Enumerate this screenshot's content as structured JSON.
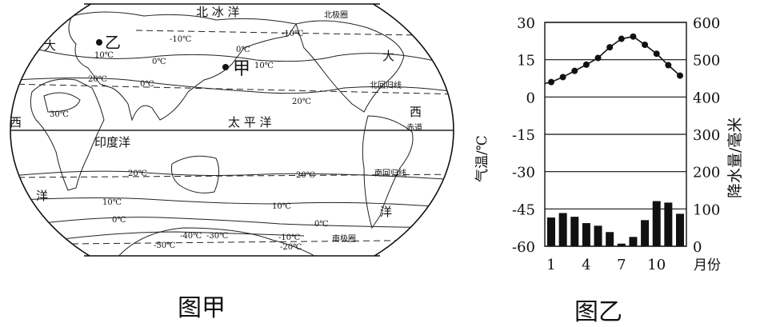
{
  "figure_a": {
    "caption": "图甲",
    "labels": {
      "arctic": "北 冰 洋",
      "pacific": "太 平 洋",
      "indian": "印度洋",
      "atlantic_w": "西",
      "atlantic_w2": "洋",
      "atlantic_da": "大",
      "atlantic_e_da": "大",
      "atlantic_e_xi": "西",
      "atlantic_e_yang": "洋",
      "point_jia": "甲",
      "point_yi": "乙",
      "tropic_cancer": "北回归线",
      "tropic_capricorn": "南回归线",
      "equator": "赤道",
      "antarctic_circle": "南极圈",
      "arctic_circle": "北极圈"
    },
    "isotherms": {
      "n_m10": "-10℃",
      "n_0": "0℃",
      "n_10": "10℃",
      "n_10b": "10℃",
      "n_0b": "0℃",
      "n_0c": "0℃",
      "n_20": "20℃",
      "n_20b": "20℃",
      "n_30": "30℃",
      "s_20": "20℃",
      "s_20b": "20℃",
      "s_10": "10℃",
      "s_10b": "10℃",
      "s_0": "0℃",
      "s_0b": "0℃",
      "s_m10": "-10℃",
      "s_m10b": "-10℃",
      "s_m20": "-20℃",
      "s_m30": "-30℃",
      "s_m40": "-40℃",
      "s_m50": "-50℃"
    }
  },
  "figure_b": {
    "caption": "图乙",
    "chart_data": {
      "type": "bar+line",
      "xlabel": "月份",
      "ylabel_left": "气温/℃",
      "ylabel_right": "降水量/毫米",
      "x": [
        1,
        2,
        3,
        4,
        5,
        6,
        7,
        8,
        9,
        10,
        11,
        12
      ],
      "x_tick_labels": [
        "1",
        "4",
        "7",
        "10"
      ],
      "x_tick_values": [
        1,
        4,
        7,
        10
      ],
      "left_axis": {
        "ylim": [
          -60,
          30
        ],
        "ticks": [
          "30",
          "15",
          "0",
          "-15",
          "-30",
          "-45",
          "-60"
        ],
        "tick_values": [
          30,
          15,
          0,
          -15,
          -30,
          -45,
          -60
        ]
      },
      "right_axis": {
        "ylim": [
          0,
          600
        ],
        "ticks": [
          "600",
          "500",
          "400",
          "300",
          "200",
          "100",
          "0"
        ],
        "tick_values": [
          600,
          500,
          400,
          300,
          200,
          100,
          0
        ]
      },
      "grid": true,
      "series": [
        {
          "name": "气温",
          "type": "line",
          "axis": "left",
          "values": [
            6,
            8,
            10.5,
            13,
            15.7,
            20,
            23.4,
            24.3,
            21,
            17.4,
            12.8,
            8.6
          ]
        },
        {
          "name": "降水量",
          "type": "bar",
          "axis": "right",
          "values": [
            77,
            89,
            79,
            62,
            55,
            38,
            7,
            25,
            70,
            121,
            117,
            87
          ]
        }
      ]
    }
  }
}
